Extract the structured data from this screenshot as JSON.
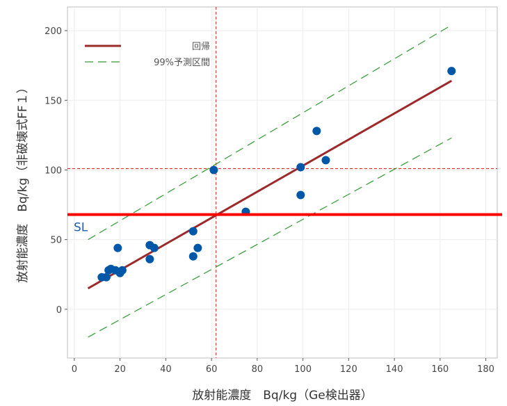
{
  "chart_data": {
    "type": "scatter",
    "xlabel": "放射能濃度　Bq/kg（Ge検出器）",
    "ylabel": "放射能濃度　Bq/kg（非破壊式FF１）",
    "xlim": [
      -3,
      185
    ],
    "ylim": [
      -35,
      217
    ],
    "x_ticks": [
      0,
      20,
      40,
      60,
      80,
      100,
      120,
      140,
      160,
      180
    ],
    "y_ticks": [
      0,
      50,
      100,
      150,
      200
    ],
    "grid": true,
    "legend": {
      "position": "top-left",
      "entries": [
        {
          "label": "回帰",
          "color": "#9b2a2a",
          "style": "solid"
        },
        {
          "label": "99%予測区間",
          "color": "#2e9a2e",
          "style": "dashed"
        }
      ]
    },
    "series": [
      {
        "kind": "points",
        "color": "#0057a8",
        "x": [
          12,
          14,
          15,
          16,
          18,
          19,
          20,
          21,
          33,
          33,
          35,
          52,
          52,
          54,
          61,
          75,
          99,
          99,
          106,
          110,
          165
        ],
        "y": [
          23,
          23,
          28,
          29,
          28,
          44,
          26,
          28,
          46,
          36,
          44,
          56,
          38,
          44,
          100,
          70,
          102,
          82,
          128,
          107,
          171
        ]
      },
      {
        "kind": "line",
        "name": "回帰",
        "color": "#9b2a2a",
        "dash": "none",
        "x": [
          6,
          165
        ],
        "y": [
          15,
          164
        ]
      },
      {
        "kind": "line",
        "name": "99%予測区間",
        "color": "#2e9a2e",
        "dash": "dashed",
        "x": [
          6,
          165
        ],
        "y": [
          50,
          204
        ]
      },
      {
        "kind": "line",
        "name": "99%予測区間",
        "color": "#2e9a2e",
        "dash": "dashed",
        "x": [
          6,
          165
        ],
        "y": [
          -20,
          123
        ]
      }
    ],
    "reference_lines": [
      {
        "orientation": "vertical",
        "value": 62,
        "color": "#e0201a",
        "dash": "dotted"
      },
      {
        "orientation": "horizontal",
        "value": 101,
        "color": "#e0201a",
        "dash": "dotted"
      },
      {
        "orientation": "horizontal",
        "value": 68,
        "color": "#ff0000",
        "dash": "none",
        "label": "SL",
        "label_color": "#1a5fb0"
      }
    ]
  }
}
